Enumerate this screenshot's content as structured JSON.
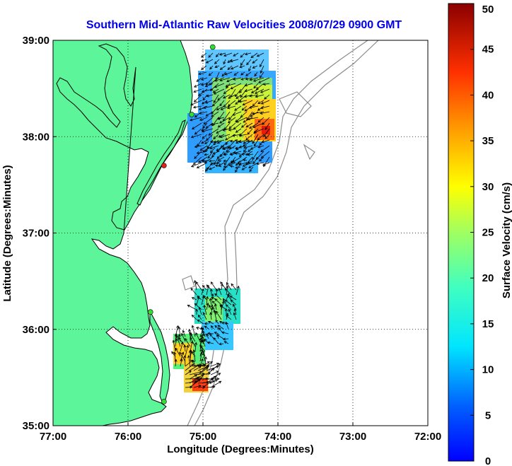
{
  "title": "Southern Mid-Atlantic Raw Velocities 2008/07/29 0900 GMT",
  "map": {
    "xlabel": "Longitude (Degrees:Minutes)",
    "ylabel": "Latitude (Degrees:Minutes)",
    "x_range": [
      -77,
      -72
    ],
    "y_range": [
      35,
      39
    ],
    "x_ticks": [
      {
        "value": -77,
        "label": "77:00"
      },
      {
        "value": -76,
        "label": "76:00"
      },
      {
        "value": -75,
        "label": "75:00"
      },
      {
        "value": -74,
        "label": "74:00"
      },
      {
        "value": -73,
        "label": "73:00"
      },
      {
        "value": -72,
        "label": "72:00"
      }
    ],
    "y_ticks": [
      {
        "value": 35,
        "label": "35:00"
      },
      {
        "value": 36,
        "label": "36:00"
      },
      {
        "value": 37,
        "label": "37:00"
      },
      {
        "value": 38,
        "label": "38:00"
      },
      {
        "value": 39,
        "label": "39:00"
      }
    ],
    "grid": "dotted",
    "colors": {
      "land": "#5cf59a",
      "water": "#ffffff",
      "bathymetry": "#8c8c8c",
      "arrow": "#000000",
      "station_active": "#33dd33",
      "station_inactive": "#dd2222",
      "title": "#0000ee"
    },
    "stations": [
      {
        "name": "station-1",
        "lon": -74.87,
        "lat": 38.93,
        "status": "active"
      },
      {
        "name": "station-2",
        "lon": -75.15,
        "lat": 38.23,
        "status": "active"
      },
      {
        "name": "station-3",
        "lon": -75.52,
        "lat": 37.7,
        "status": "inactive"
      },
      {
        "name": "station-4",
        "lon": -75.7,
        "lat": 36.18,
        "status": "active"
      },
      {
        "name": "station-5",
        "lon": -75.52,
        "lat": 35.25,
        "status": "active"
      }
    ]
  },
  "colorbar": {
    "label": "Surface Velocity (cm/s)",
    "min": 0,
    "max": 50,
    "ticks": [
      0,
      5,
      10,
      15,
      20,
      25,
      30,
      35,
      40,
      45,
      50
    ],
    "colormap": "jet"
  }
}
